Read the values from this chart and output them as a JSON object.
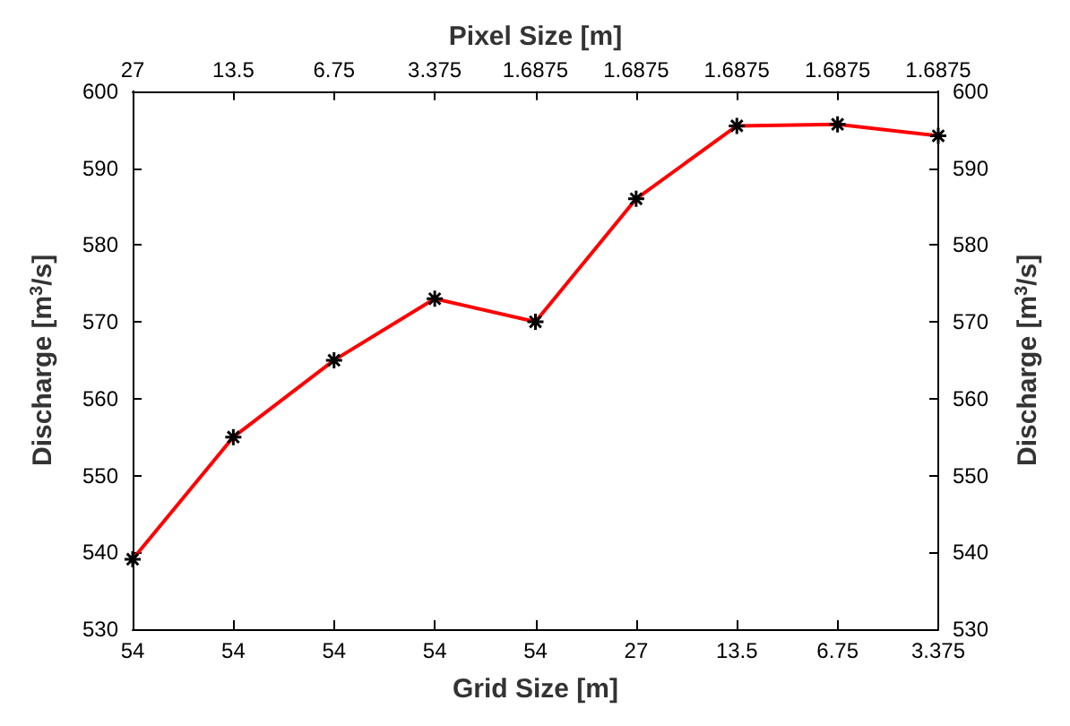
{
  "chart_data": {
    "type": "line",
    "xlabel": "Grid Size [m]",
    "x2label": "Pixel Size [m]",
    "ylabel": "Discharge [m$^{3}$/s]",
    "y2label": "Discharge [m$^{3}$/s]",
    "categories": [
      "54",
      "54",
      "54",
      "54",
      "54",
      "27",
      "13.5",
      "6.75",
      "3.375"
    ],
    "annotations": [
      "27",
      "13.5",
      "6.75",
      "3.375",
      "1.6875",
      "1.6875",
      "1.6875",
      "1.6875",
      "1.6875"
    ],
    "series": [
      {
        "color": "#ff0000",
        "values": [
          539.1,
          555,
          565,
          573,
          570,
          586,
          595.5,
          595.7,
          594.2
        ]
      }
    ],
    "ylim": [
      530,
      600
    ],
    "yticks": [
      530,
      540,
      550,
      560,
      570,
      580,
      590,
      600
    ],
    "y2lim": [
      530,
      600
    ],
    "y2ticks": [
      530,
      540,
      550,
      560,
      570,
      580,
      590,
      600
    ],
    "marker": "cross",
    "line_style": "solid",
    "grid": false
  }
}
